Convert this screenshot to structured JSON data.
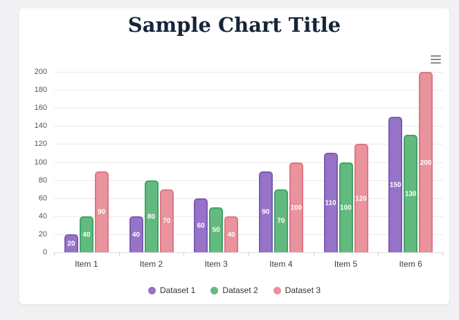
{
  "header": {
    "title": "Sample Chart Title",
    "title_color": "#16243a"
  },
  "toolbar": {
    "menu_icon": "hamburger-menu-icon",
    "menu_icon_color": "#8a8a8a"
  },
  "colors": {
    "page_background": "#f1f1f3",
    "card_background": "#ffffff",
    "gridline": "#e9e9e9",
    "y_tick_text": "#555555",
    "x_tick_text": "#3c3c3c",
    "legend_text": "#333333",
    "bar_value_text": "#ffffff"
  },
  "chart_data": {
    "type": "bar",
    "title": "Sample Chart Title",
    "categories": [
      "Item 1",
      "Item 2",
      "Item 3",
      "Item 4",
      "Item 5",
      "Item 6"
    ],
    "series": [
      {
        "name": "Dataset 1",
        "fill_color": "#9673c8",
        "border_color": "#7d5bb5",
        "values": [
          20,
          40,
          60,
          90,
          110,
          150
        ]
      },
      {
        "name": "Dataset 2",
        "fill_color": "#63ba7e",
        "border_color": "#3fa565",
        "values": [
          40,
          80,
          50,
          70,
          100,
          130
        ]
      },
      {
        "name": "Dataset 3",
        "fill_color": "#e9939d",
        "border_color": "#df7583",
        "values": [
          90,
          70,
          40,
          100,
          120,
          200
        ]
      }
    ],
    "xlabel": "",
    "ylabel": "",
    "ylim": [
      0,
      200
    ],
    "yticks": [
      0,
      20,
      40,
      60,
      80,
      100,
      120,
      140,
      160,
      180,
      200
    ],
    "grid": true,
    "legend_position": "bottom",
    "value_labels": "values shown as white bold text centered inside each bar"
  }
}
